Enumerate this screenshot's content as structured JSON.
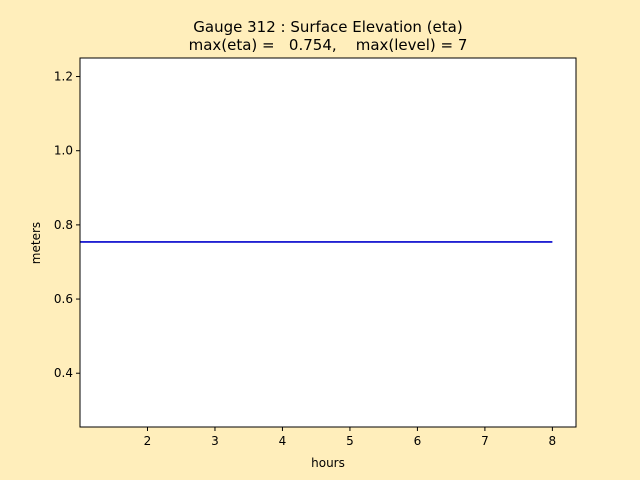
{
  "chart_data": {
    "type": "line",
    "title": "Gauge 312 : Surface Elevation (eta)",
    "subtitle": "max(eta) =   0.754,    max(level) = 7",
    "xlabel": "hours",
    "ylabel": "meters",
    "xlim": [
      1.0,
      8.35
    ],
    "ylim": [
      0.255,
      1.25
    ],
    "xticks": [
      2,
      3,
      4,
      5,
      6,
      7,
      8
    ],
    "yticks": [
      0.4,
      0.6,
      0.8,
      1.0,
      1.2
    ],
    "ytick_labels": [
      "0.4",
      "0.6",
      "0.8",
      "1.0",
      "1.2"
    ],
    "grid": false,
    "series": [
      {
        "color": "#0000cc",
        "x": [
          1.0,
          2.0,
          3.0,
          4.0,
          5.0,
          6.0,
          7.0,
          8.0
        ],
        "y": [
          0.754,
          0.754,
          0.754,
          0.754,
          0.754,
          0.754,
          0.754,
          0.754
        ]
      }
    ]
  },
  "colors": {
    "figure_background": "#ffeebb",
    "plot_background": "#ffffff",
    "line": "#0000cc"
  }
}
